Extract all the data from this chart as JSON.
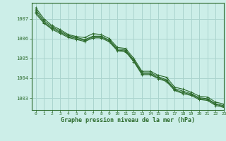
{
  "background_color": "#cceee8",
  "grid_color": "#aad4ce",
  "line_color": "#2d6b2d",
  "xlabel": "Graphe pression niveau de la mer (hPa)",
  "ylim": [
    1002.4,
    1007.8
  ],
  "xlim": [
    -0.5,
    23
  ],
  "yticks": [
    1003,
    1004,
    1005,
    1006,
    1007
  ],
  "xticks": [
    0,
    1,
    2,
    3,
    4,
    5,
    6,
    7,
    8,
    9,
    10,
    11,
    12,
    13,
    14,
    15,
    16,
    17,
    18,
    19,
    20,
    21,
    22,
    23
  ],
  "series": [
    [
      1007.55,
      1007.0,
      1006.65,
      1006.45,
      1006.2,
      1006.1,
      1006.05,
      1006.25,
      1006.2,
      1006.0,
      1005.55,
      1005.5,
      1005.0,
      1004.35,
      1004.35,
      1004.15,
      1004.05,
      1003.55,
      1003.45,
      1003.3,
      1003.1,
      1003.05,
      1002.8,
      1002.7
    ],
    [
      1007.45,
      1006.9,
      1006.58,
      1006.38,
      1006.15,
      1006.05,
      1005.95,
      1006.12,
      1006.12,
      1005.92,
      1005.48,
      1005.42,
      1004.92,
      1004.28,
      1004.28,
      1004.08,
      1003.92,
      1003.48,
      1003.35,
      1003.22,
      1003.02,
      1002.97,
      1002.72,
      1002.62
    ],
    [
      1007.35,
      1006.82,
      1006.52,
      1006.32,
      1006.1,
      1006.0,
      1005.9,
      1006.08,
      1006.08,
      1005.88,
      1005.42,
      1005.38,
      1004.88,
      1004.22,
      1004.22,
      1004.02,
      1003.88,
      1003.42,
      1003.28,
      1003.18,
      1002.98,
      1002.93,
      1002.68,
      1002.58
    ],
    [
      1007.25,
      1006.78,
      1006.46,
      1006.26,
      1006.05,
      1005.95,
      1005.85,
      1006.03,
      1006.03,
      1005.83,
      1005.38,
      1005.33,
      1004.83,
      1004.18,
      1004.18,
      1003.98,
      1003.83,
      1003.38,
      1003.23,
      1003.13,
      1002.93,
      1002.88,
      1002.63,
      1002.53
    ]
  ]
}
